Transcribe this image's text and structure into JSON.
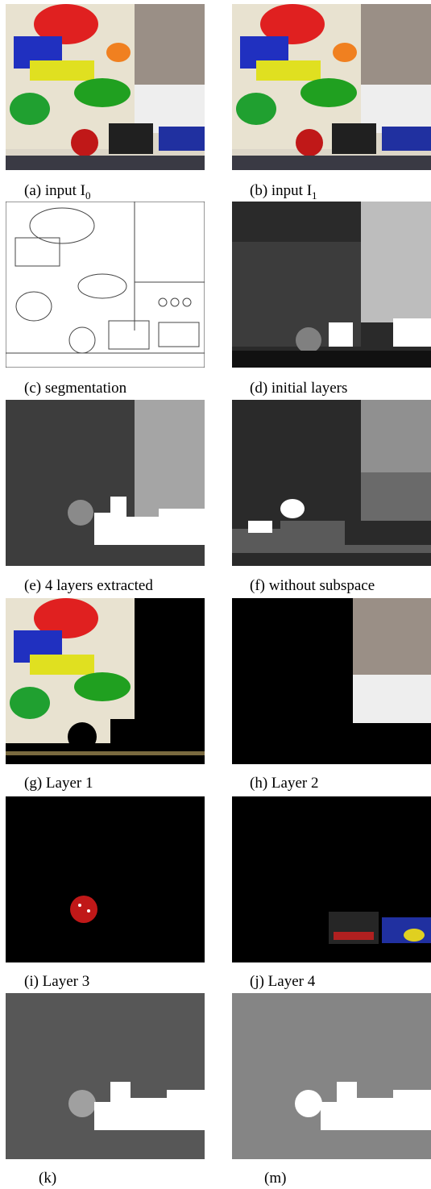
{
  "figure": {
    "panels": [
      {
        "caption": "(a) input I",
        "sub": "0"
      },
      {
        "caption": "(b) input I",
        "sub": "1"
      },
      {
        "caption": "(c) segmentation"
      },
      {
        "caption": "(d) initial layers"
      },
      {
        "caption": "(e) 4 layers extracted"
      },
      {
        "caption": "(f) without subspace"
      },
      {
        "caption": "(g) Layer 1"
      },
      {
        "caption": "(h) Layer 2"
      },
      {
        "caption": "(i) Layer 3"
      },
      {
        "caption": "(j) Layer 4"
      },
      {
        "caption": "(k)"
      },
      {
        "caption": "(m)"
      }
    ]
  }
}
